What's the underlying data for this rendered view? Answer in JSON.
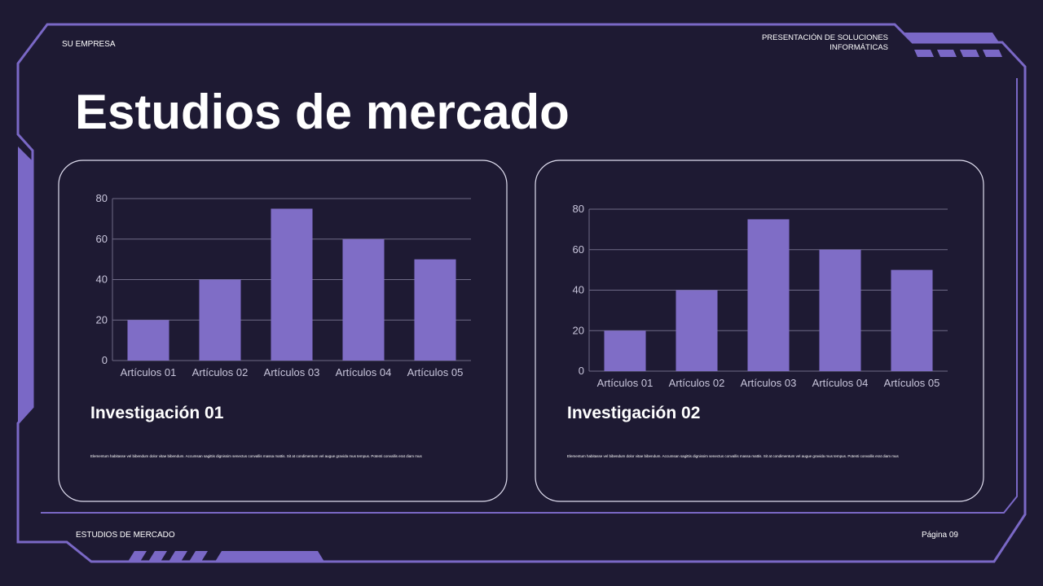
{
  "header": {
    "company": "SU EMPRESA",
    "presentation": "PRESENTACIÓN DE SOLUCIONES INFORMÁTICAS"
  },
  "title": "Estudios de mercado",
  "cards": [
    {
      "title": "Investigación 01",
      "text": "Elementum habitasse vel bibendum dolor vitae bibendum. Accumsan sagittis dignissim senectus convallis massa mattis. Sit at condimentum vel augue gravida mus tempus. Potenti convallis erat diam mus"
    },
    {
      "title": "Investigación 02",
      "text": "Elementum habitasse vel bibendum dolor vitae bibendum. Accumsan sagittis dignissim senectus convallis massa mattis. Sit at condimentum vel augue gravida mus tempus. Potenti convallis erat diam mus"
    }
  ],
  "footer": {
    "section": "ESTUDIOS DE MERCADO",
    "page": "Página 09"
  },
  "chart_data": [
    {
      "type": "bar",
      "categories": [
        "Artículos 01",
        "Artículos 02",
        "Artículos 03",
        "Artículos 04",
        "Artículos 05"
      ],
      "values": [
        20,
        40,
        75,
        60,
        50
      ],
      "color": "#7f6dc6",
      "ylim": [
        0,
        80
      ],
      "yticks": [
        0,
        20,
        40,
        60,
        80
      ],
      "grid": true
    },
    {
      "type": "bar",
      "categories": [
        "Artículos 01",
        "Artículos 02",
        "Artículos 03",
        "Artículos 04",
        "Artículos 05"
      ],
      "values": [
        20,
        40,
        75,
        60,
        50
      ],
      "color": "#7f6dc6",
      "ylim": [
        0,
        80
      ],
      "yticks": [
        0,
        20,
        40,
        60,
        80
      ],
      "grid": true
    }
  ]
}
